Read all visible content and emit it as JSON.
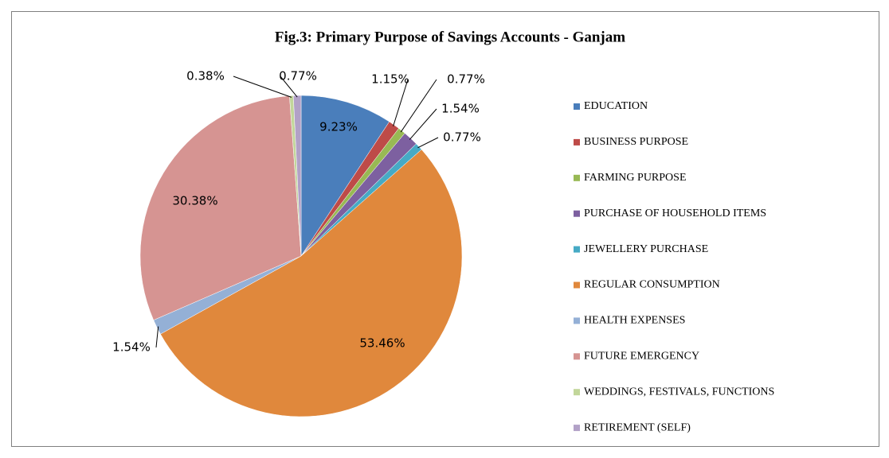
{
  "chart_data": {
    "type": "pie",
    "title": "Fig.3: Primary Purpose of Savings Accounts - Ganjam",
    "categories": [
      "EDUCATION",
      "BUSINESS PURPOSE",
      "FARMING PURPOSE",
      "PURCHASE OF HOUSEHOLD ITEMS",
      "JEWELLERY PURCHASE",
      "REGULAR CONSUMPTION",
      "HEALTH EXPENSES",
      "FUTURE EMERGENCY",
      "WEDDINGS, FESTIVALS, FUNCTIONS",
      "RETIREMENT (SELF)"
    ],
    "values": [
      9.23,
      1.15,
      0.77,
      1.54,
      0.77,
      53.46,
      1.54,
      30.38,
      0.38,
      0.77
    ],
    "value_labels": [
      "9.23%",
      "1.15%",
      "0.77%",
      "1.54%",
      "0.77%",
      "53.46%",
      "1.54%",
      "30.38%",
      "0.38%",
      "0.77%"
    ],
    "colors": [
      "#4a7ebb",
      "#be4b48",
      "#98b954",
      "#7d60a0",
      "#46aac5",
      "#e0883c",
      "#94b0d6",
      "#d69492",
      "#c2d69a",
      "#b2a1c7"
    ],
    "legend": "right"
  }
}
